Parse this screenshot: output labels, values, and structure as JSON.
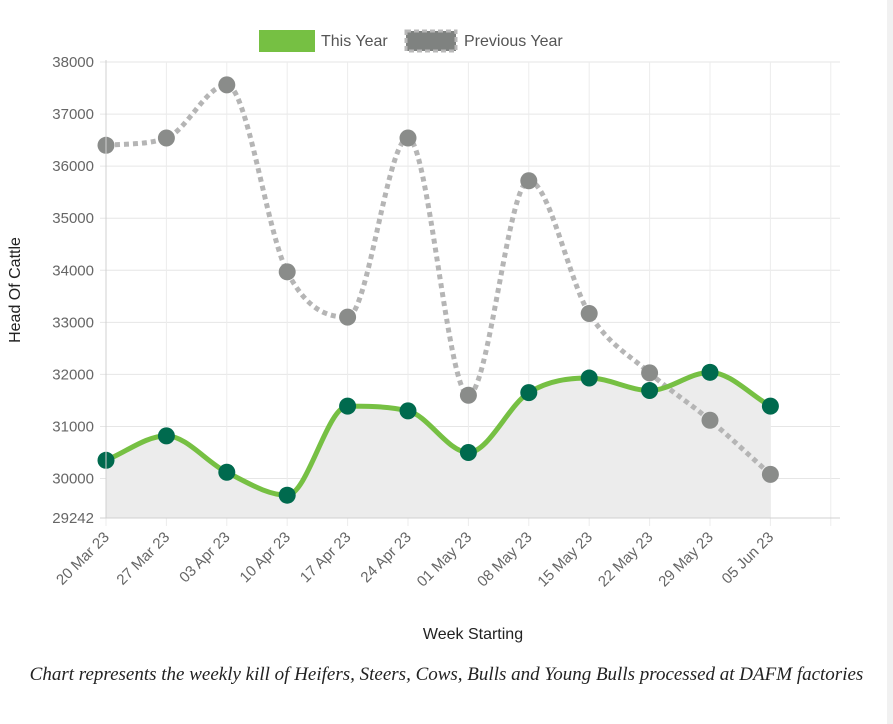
{
  "chart_data": {
    "type": "line",
    "title": "",
    "xlabel": "Week Starting",
    "ylabel": "Head Of Cattle",
    "categories": [
      "20 Mar 23",
      "27 Mar 23",
      "03 Apr 23",
      "10 Apr 23",
      "17 Apr 23",
      "24 Apr 23",
      "01 May 23",
      "08 May 23",
      "15 May 23",
      "22 May 23",
      "29 May 23",
      "05 Jun 23"
    ],
    "series": [
      {
        "name": "This Year",
        "color": "#76c043",
        "point_color": "#006a4e",
        "filled": true,
        "line_style": "solid",
        "values": [
          30350,
          30820,
          30120,
          29680,
          31390,
          31300,
          30500,
          31650,
          31930,
          31690,
          32040,
          31390
        ]
      },
      {
        "name": "Previous Year",
        "color": "#b5b5b5",
        "point_color": "#8a8c8a",
        "filled": false,
        "line_style": "dotted",
        "values": [
          36400,
          36540,
          37560,
          33970,
          33100,
          36540,
          31600,
          35720,
          33170,
          32030,
          31120,
          30080
        ]
      }
    ],
    "ylim": [
      29242,
      38000
    ],
    "yticks": [
      29242,
      30000,
      31000,
      32000,
      33000,
      34000,
      35000,
      36000,
      37000,
      38000
    ],
    "grid": true,
    "legend_position": "top"
  },
  "caption": "Chart represents the weekly kill of Heifers, Steers, Cows, Bulls and Young Bulls processed at DAFM factories"
}
